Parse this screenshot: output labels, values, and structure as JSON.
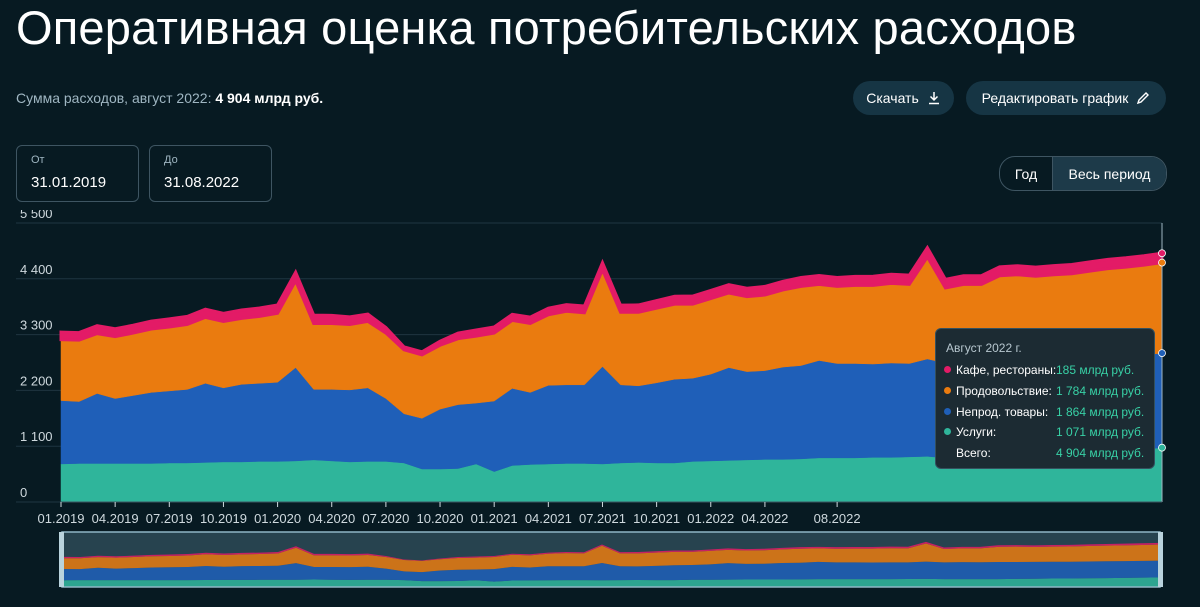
{
  "title": "Оперативная оценка потребительских расходов",
  "summary": {
    "label": "Сумма расходов, август 2022:",
    "value": "4 904 млрд руб."
  },
  "buttons": {
    "download": "Скачать",
    "edit": "Редактировать график"
  },
  "date_from": {
    "label": "От",
    "value": "31.01.2019"
  },
  "date_to": {
    "label": "До",
    "value": "31.08.2022"
  },
  "period": {
    "year": "Год",
    "all": "Весь период",
    "selected": "all"
  },
  "tooltip": {
    "header": "Август 2022 г.",
    "rows": [
      {
        "label": "Кафе, рестораны:",
        "value": "185 млрд руб."
      },
      {
        "label": "Продовольствие:",
        "value": "1 784 млрд руб."
      },
      {
        "label": "Непрод. товары:",
        "value": "1 864 млрд руб."
      },
      {
        "label": "Услуги:",
        "value": "1 071 млрд руб."
      }
    ],
    "total": {
      "label": "Всего:",
      "value": "4 904 млрд руб."
    }
  },
  "colors": {
    "services": "#2fb59b",
    "nonfood": "#1f5fb8",
    "food": "#ea7b0f",
    "cafe": "#e31b66",
    "background": "#071a22"
  },
  "chart_data": {
    "type": "area",
    "stacked": true,
    "xticks": [
      "01.2019",
      "04.2019",
      "07.2019",
      "10.2019",
      "01.2020",
      "04.2020",
      "07.2020",
      "10.2020",
      "01.2021",
      "04.2021",
      "07.2021",
      "10.2021",
      "01.2022",
      "04.2022",
      "08.2022"
    ],
    "yticks": [
      "0",
      "1 100",
      "2 200",
      "3 300",
      "4 400",
      "5 500"
    ],
    "ylim": [
      0,
      5500
    ],
    "series": [
      {
        "name": "Услуги",
        "color": "#2fb59b",
        "values": [
          750,
          760,
          760,
          760,
          760,
          760,
          770,
          770,
          780,
          790,
          790,
          800,
          800,
          810,
          830,
          810,
          790,
          800,
          800,
          770,
          650,
          650,
          660,
          750,
          600,
          720,
          740,
          750,
          760,
          760,
          750,
          770,
          780,
          770,
          770,
          800,
          810,
          820,
          830,
          840,
          840,
          850,
          870,
          870,
          870,
          880,
          880,
          890,
          900,
          870,
          870,
          870,
          880,
          900,
          920,
          940,
          950,
          970,
          990,
          1010,
          1040,
          1071
        ]
      },
      {
        "name": "Непрод. товары",
        "color": "#1f5fb8",
        "values": [
          1250,
          1220,
          1380,
          1280,
          1340,
          1400,
          1420,
          1450,
          1560,
          1460,
          1530,
          1540,
          1560,
          1840,
          1390,
          1410,
          1420,
          1450,
          1240,
          970,
          1000,
          1180,
          1260,
          1200,
          1390,
          1520,
          1420,
          1550,
          1550,
          1550,
          1920,
          1540,
          1510,
          1580,
          1650,
          1640,
          1710,
          1830,
          1740,
          1750,
          1820,
          1840,
          1920,
          1860,
          1860,
          1840,
          1860,
          1840,
          1920,
          1870,
          1900,
          1880,
          1900,
          1880,
          1870,
          1860,
          1850,
          1860,
          1870,
          1860,
          1860,
          1864
        ]
      },
      {
        "name": "Продовольствие",
        "color": "#ea7b0f",
        "values": [
          1200,
          1210,
          1180,
          1220,
          1230,
          1250,
          1260,
          1280,
          1300,
          1310,
          1300,
          1320,
          1360,
          1710,
          1300,
          1300,
          1290,
          1310,
          1290,
          1260,
          1250,
          1260,
          1300,
          1320,
          1340,
          1340,
          1360,
          1390,
          1450,
          1420,
          1910,
          1430,
          1450,
          1470,
          1480,
          1460,
          1490,
          1470,
          1480,
          1490,
          1520,
          1560,
          1500,
          1520,
          1540,
          1550,
          1570,
          1560,
          2010,
          1480,
          1520,
          1540,
          1680,
          1700,
          1660,
          1680,
          1700,
          1720,
          1740,
          1760,
          1770,
          1784
        ]
      },
      {
        "name": "Кафе, рестораны",
        "color": "#e31b66",
        "values": [
          150,
          150,
          155,
          155,
          155,
          155,
          160,
          160,
          160,
          160,
          165,
          165,
          165,
          170,
          165,
          160,
          150,
          145,
          110,
          60,
          60,
          80,
          110,
          120,
          120,
          120,
          125,
          130,
          130,
          135,
          140,
          140,
          145,
          150,
          155,
          160,
          160,
          165,
          165,
          170,
          170,
          175,
          175,
          175,
          178,
          180,
          180,
          182,
          185,
          170,
          170,
          172,
          175,
          178,
          180,
          180,
          182,
          183,
          184,
          185,
          185,
          185
        ]
      }
    ]
  }
}
